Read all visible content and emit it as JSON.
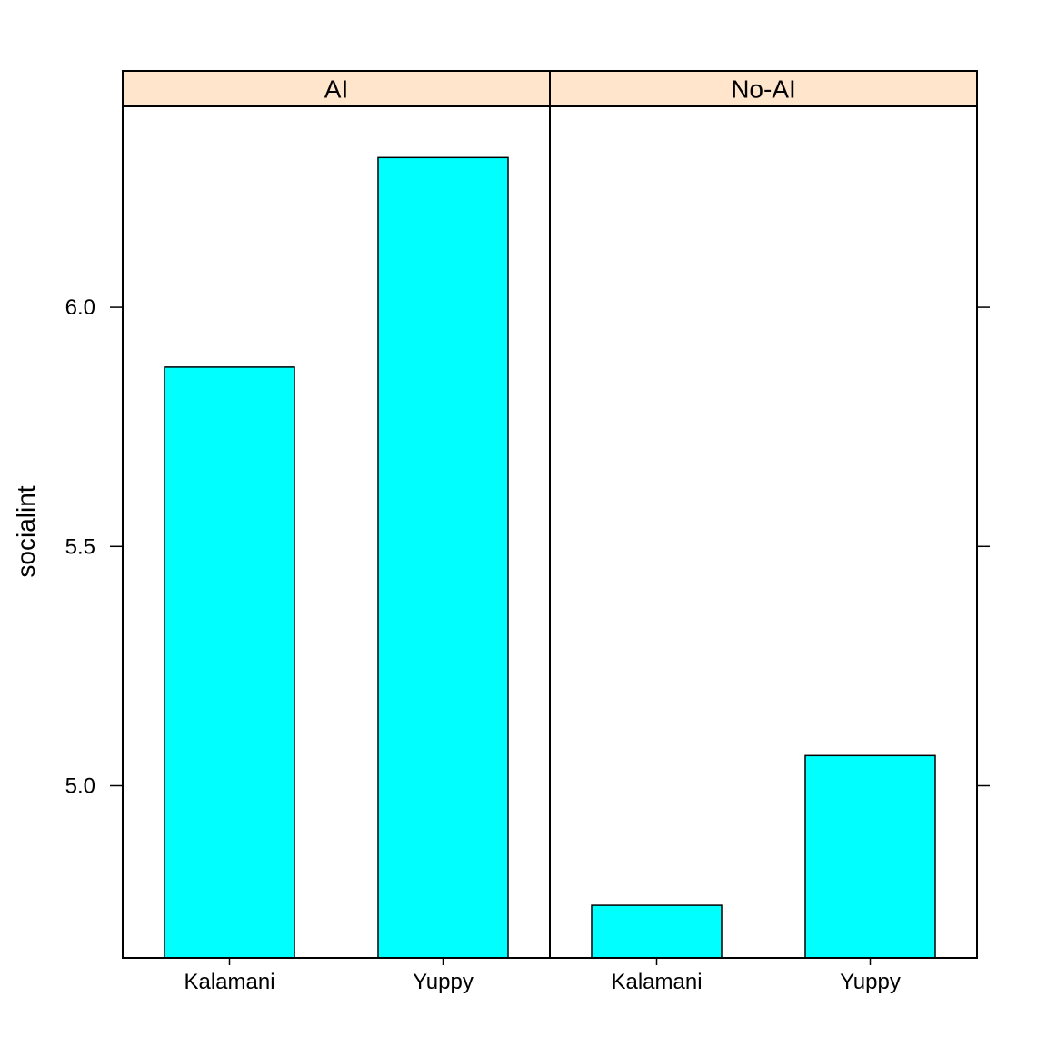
{
  "chart_data": {
    "type": "bar",
    "ylabel": "socialint",
    "ylim": [
      4.64,
      6.42
    ],
    "yticks": [
      5.0,
      5.5,
      6.0
    ],
    "ytick_labels": [
      "5.0",
      "5.5",
      "6.0"
    ],
    "panels": [
      {
        "strip": "AI",
        "categories": [
          "Kalamani",
          "Yuppy"
        ],
        "values": [
          5.875,
          6.313
        ]
      },
      {
        "strip": "No-AI",
        "categories": [
          "Kalamani",
          "Yuppy"
        ],
        "values": [
          4.75,
          5.063
        ]
      }
    ],
    "bar_color": "#00ffff",
    "strip_color": "#ffe5cc",
    "grid": false
  }
}
